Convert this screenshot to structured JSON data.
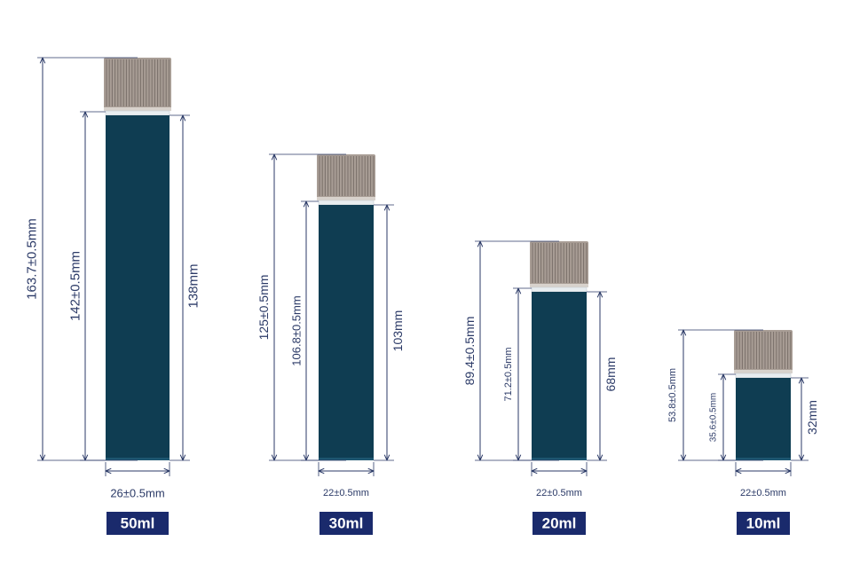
{
  "colors": {
    "tube": "#0f3d52",
    "cap": "#a89d95",
    "cap_ridge": "#7a706a",
    "dimension_line": "#2b3a67",
    "badge": "#1a2a6c",
    "badge_text": "#ffffff"
  },
  "vials": [
    {
      "id": "50ml",
      "label": "50ml",
      "total_height": "163.7±0.5mm",
      "body_height": "142±0.5mm",
      "fill_height": "138mm",
      "diameter": "26±0.5mm"
    },
    {
      "id": "30ml",
      "label": "30ml",
      "total_height": "125±0.5mm",
      "body_height": "106.8±0.5mm",
      "fill_height": "103mm",
      "diameter": "22±0.5mm"
    },
    {
      "id": "20ml",
      "label": "20ml",
      "total_height": "89.4±0.5mm",
      "body_height": "71.2±0.5mm",
      "fill_height": "68mm",
      "diameter": "22±0.5mm"
    },
    {
      "id": "10ml",
      "label": "10ml",
      "total_height": "53.8±0.5mm",
      "body_height": "35.6±0.5mm",
      "fill_height": "32mm",
      "diameter": "22±0.5mm"
    }
  ]
}
